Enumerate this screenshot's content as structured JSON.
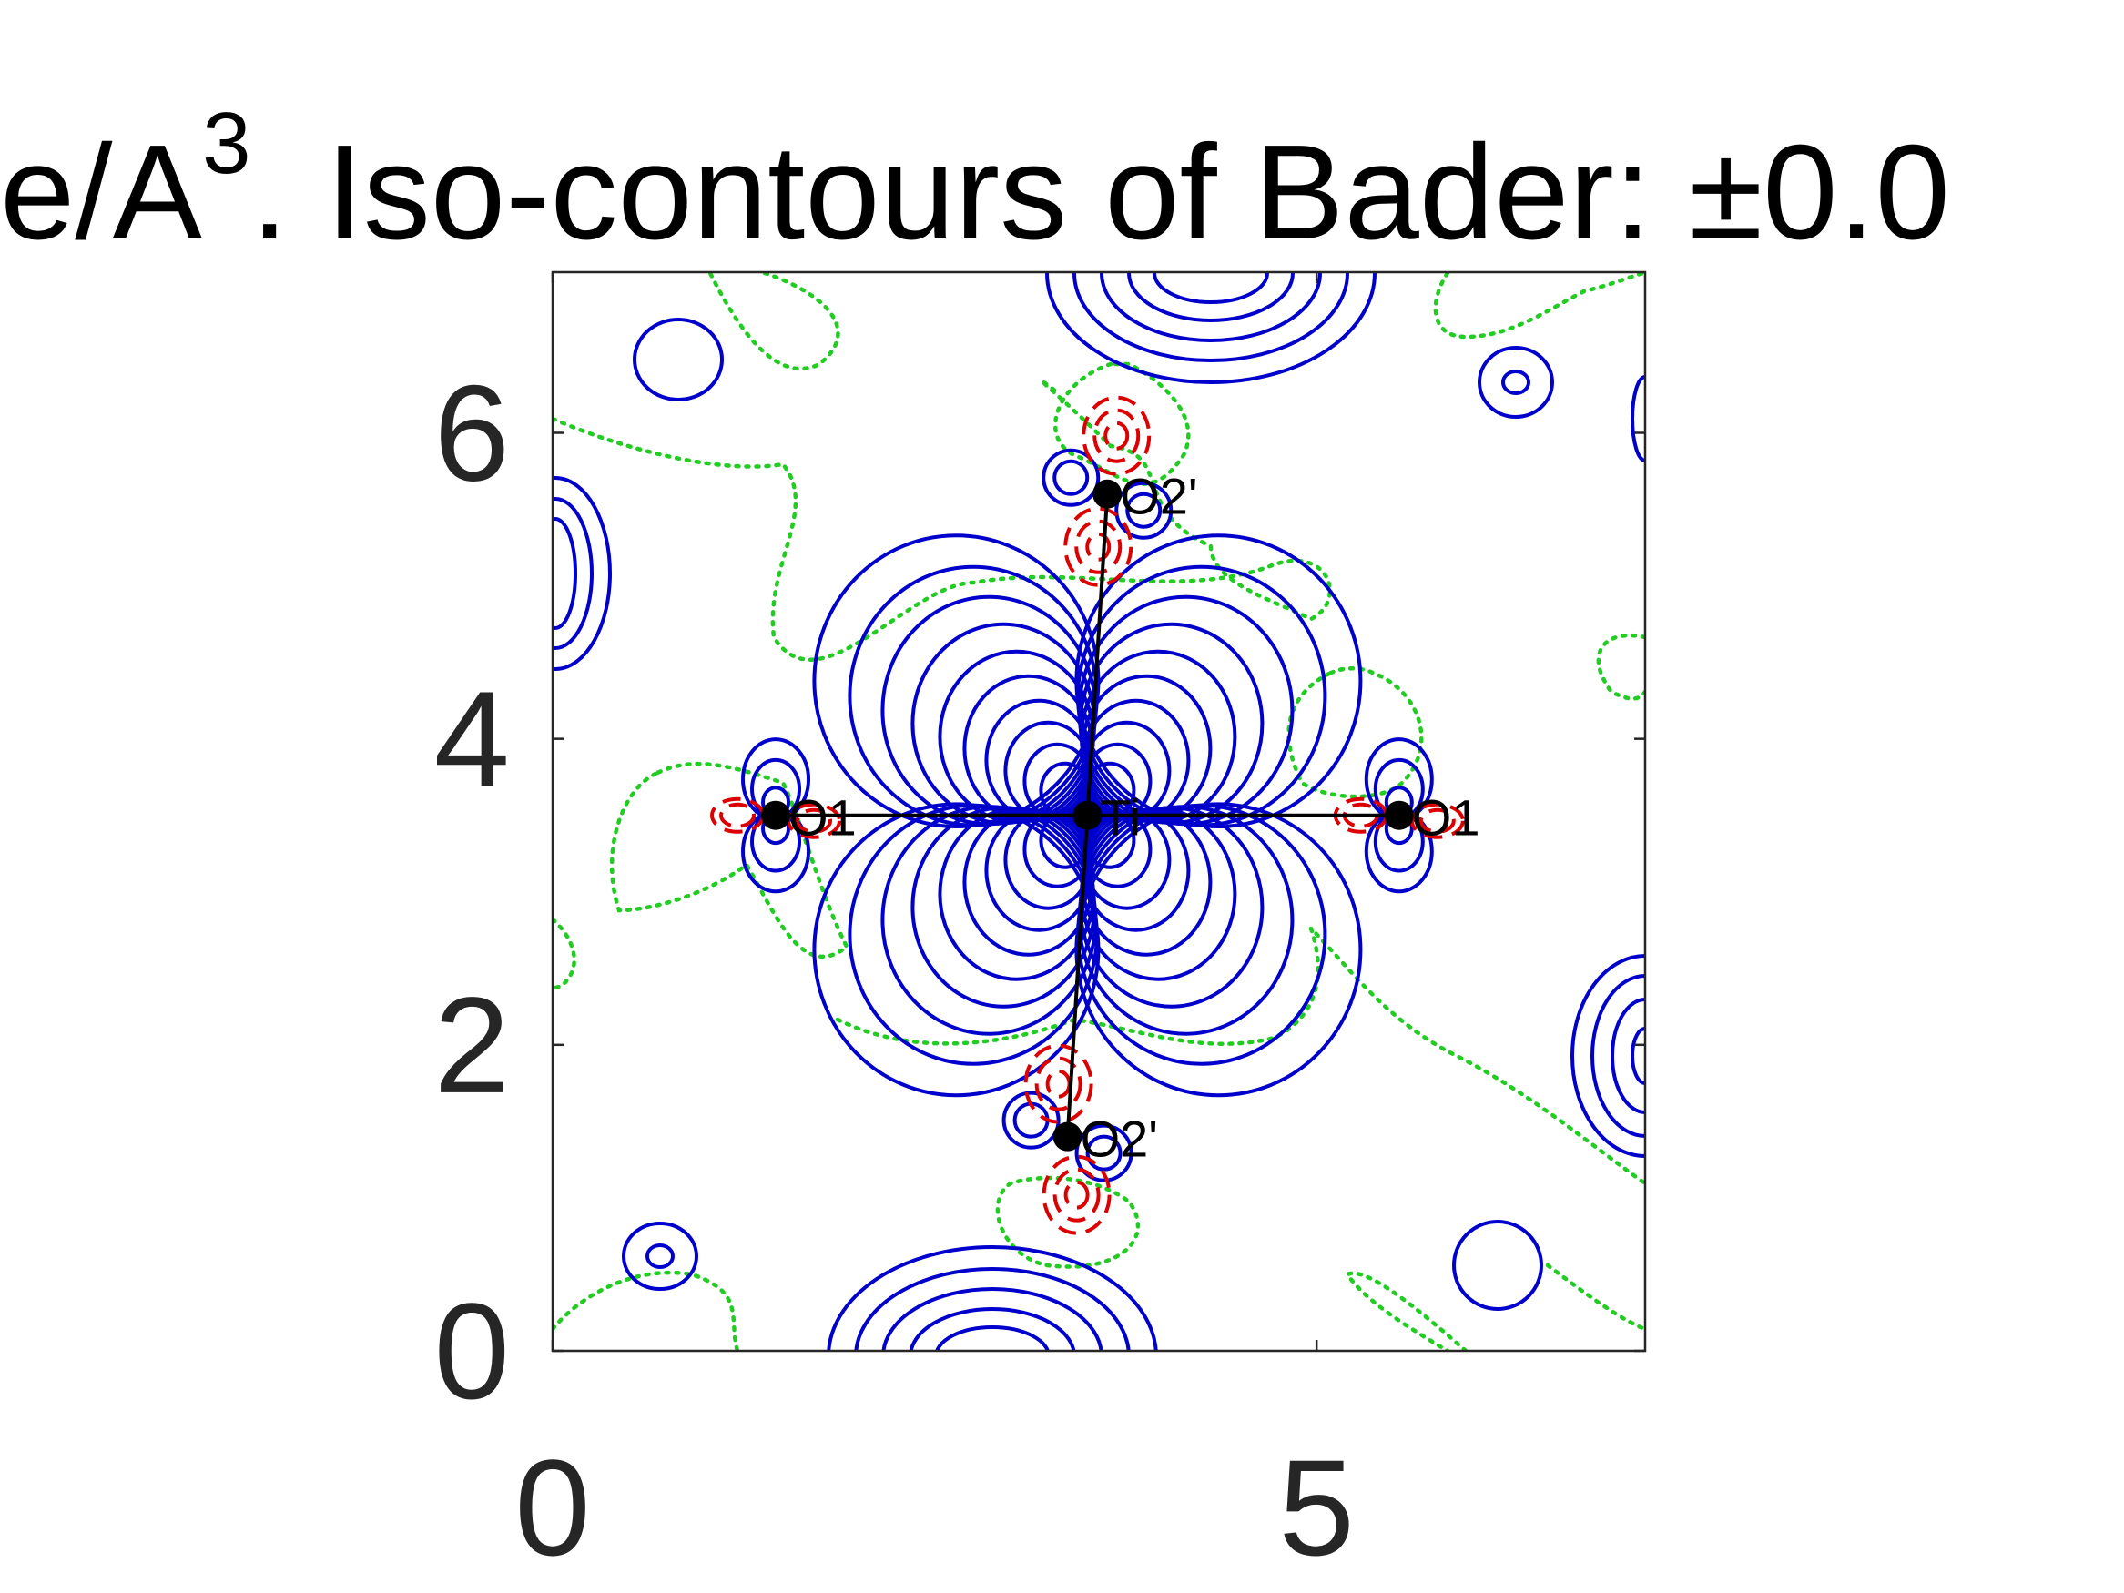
{
  "chart_data": {
    "type": "contour",
    "title_parts": {
      "prefix": "e/A",
      "superscript": "3",
      "suffix": ". Iso-contours of Bader: ±0.0"
    },
    "xlabel": "",
    "ylabel": "",
    "xlim": [
      0,
      7.15
    ],
    "ylim": [
      0,
      7.05
    ],
    "x_ticks": [
      0,
      5
    ],
    "x_tick_labels": [
      "0",
      "5"
    ],
    "y_ticks": [
      0,
      2,
      4,
      6
    ],
    "y_tick_labels": [
      "0",
      "2",
      "4",
      "6"
    ],
    "grid": false,
    "contour_styles": [
      {
        "name": "positive",
        "color": "#0000cc",
        "style": "solid"
      },
      {
        "name": "negative",
        "color": "#dd0000",
        "style": "dashed"
      },
      {
        "name": "zero",
        "color": "#22cc22",
        "style": "dotted"
      }
    ],
    "atoms": [
      {
        "label": "Ti",
        "x": 3.5,
        "y": 3.5
      },
      {
        "label": "O1",
        "x": 1.46,
        "y": 3.5
      },
      {
        "label": "O1",
        "x": 5.54,
        "y": 3.5
      },
      {
        "label": "O2'",
        "x": 3.63,
        "y": 5.6
      },
      {
        "label": "O2'",
        "x": 3.37,
        "y": 1.4
      }
    ],
    "bonds": [
      [
        0,
        1
      ],
      [
        0,
        2
      ],
      [
        0,
        3
      ],
      [
        0,
        4
      ]
    ]
  }
}
